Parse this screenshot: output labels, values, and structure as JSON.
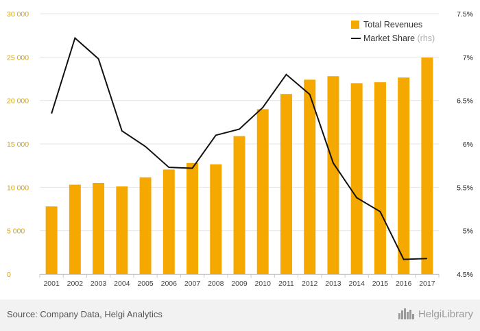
{
  "chart_data": {
    "type": "bar",
    "categories": [
      "2001",
      "2002",
      "2003",
      "2004",
      "2005",
      "2006",
      "2007",
      "2008",
      "2009",
      "2010",
      "2011",
      "2012",
      "2013",
      "2014",
      "2015",
      "2016",
      "2017"
    ],
    "series": [
      {
        "name": "Total Revenues",
        "type": "bar",
        "axis": "left",
        "values": [
          7800,
          10300,
          10500,
          10100,
          11150,
          12050,
          12800,
          12650,
          15900,
          19000,
          20750,
          22400,
          22800,
          22000,
          22100,
          22650,
          24950
        ]
      },
      {
        "name": "Market Share",
        "name_suffix": "(rhs)",
        "type": "line",
        "axis": "right",
        "values": [
          6.35,
          7.22,
          6.98,
          6.15,
          5.97,
          5.73,
          5.72,
          6.1,
          6.17,
          6.42,
          6.8,
          6.57,
          5.78,
          5.38,
          5.22,
          4.67,
          4.68
        ]
      }
    ],
    "left_axis": {
      "ylim": [
        0,
        30000
      ],
      "ticks": [
        0,
        5000,
        10000,
        15000,
        20000,
        25000,
        30000
      ],
      "tick_labels": [
        "0",
        "5 000",
        "10 000",
        "15 000",
        "20 000",
        "25 000",
        "30 000"
      ]
    },
    "right_axis": {
      "ylim": [
        4.5,
        7.5
      ],
      "ticks": [
        4.5,
        5,
        5.5,
        6,
        6.5,
        7,
        7.5
      ],
      "tick_labels": [
        "4.5%",
        "5%",
        "5.5%",
        "6%",
        "6.5%",
        "7%",
        "7.5%"
      ]
    },
    "grid": true,
    "legend_position": "top-right",
    "colors": {
      "bars": "#f5a900",
      "line": "#111111",
      "left_tick": "#d9a300",
      "grid": "#e6e6e6"
    }
  },
  "footer": {
    "source": "Source: Company Data, Helgi Analytics",
    "brand": "HelgiLibrary",
    "brand_icon": "city-skyline-icon"
  }
}
